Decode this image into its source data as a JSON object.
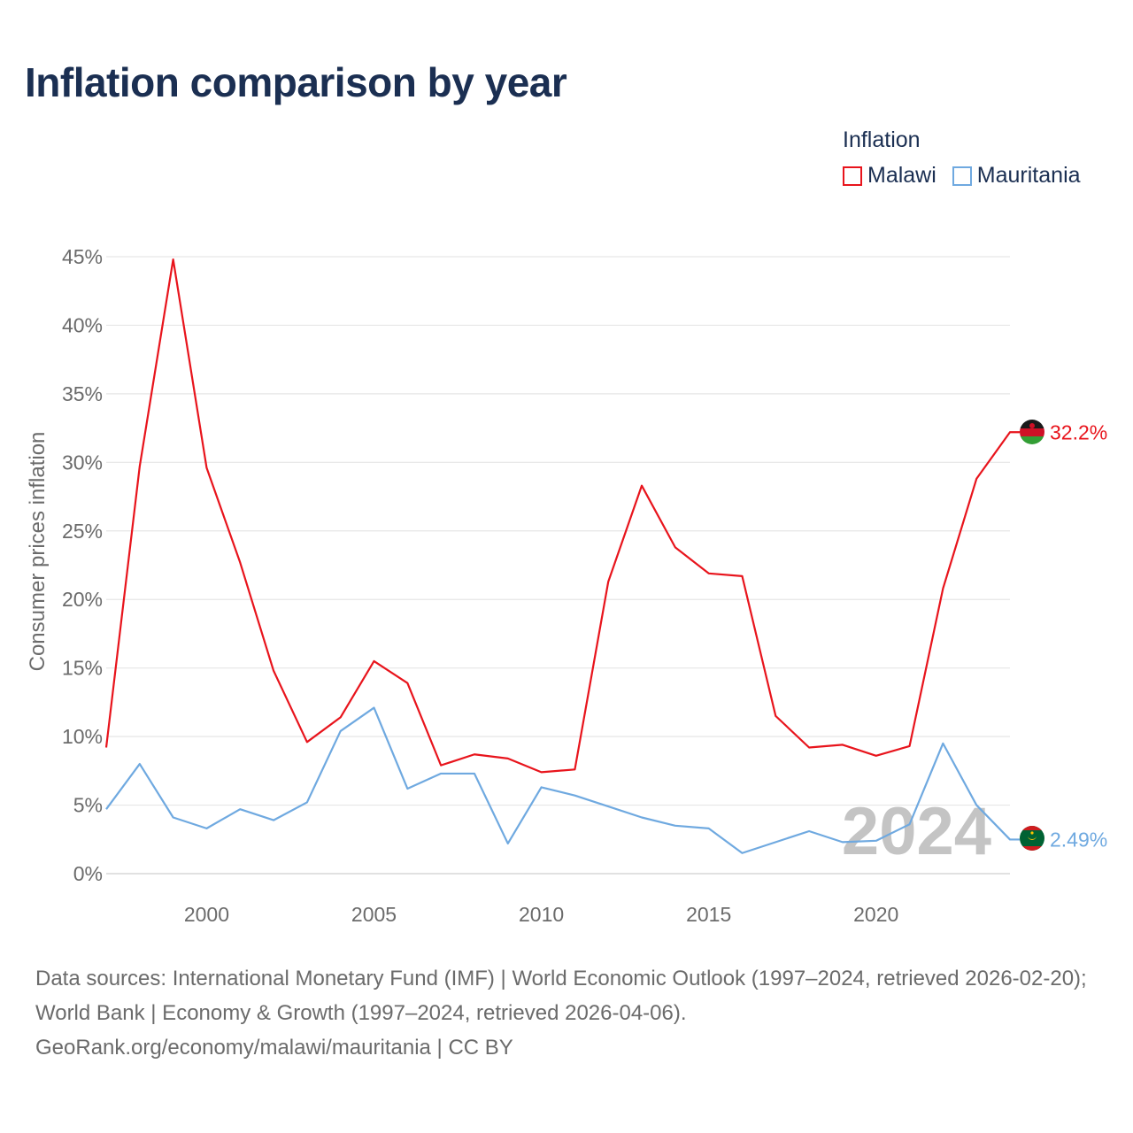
{
  "header": {
    "title": "Inflation comparison by year"
  },
  "legend": {
    "title": "Inflation",
    "items": [
      {
        "label": "Malawi",
        "color": "#e8141c"
      },
      {
        "label": "Mauritania",
        "color": "#6fa9e0"
      }
    ]
  },
  "chart_data": {
    "type": "line",
    "title": "Inflation comparison by year",
    "xlabel": "",
    "ylabel": "Consumer prices inflation",
    "xlim": [
      1997,
      2024
    ],
    "ylim": [
      0,
      45
    ],
    "x_ticks": [
      "2000",
      "2005",
      "2010",
      "2015",
      "2020"
    ],
    "y_ticks": [
      "0%",
      "5%",
      "10%",
      "15%",
      "20%",
      "25%",
      "30%",
      "35%",
      "40%",
      "45%"
    ],
    "watermark_year": "2024",
    "x": [
      1997,
      1998,
      1999,
      2000,
      2001,
      2002,
      2003,
      2004,
      2005,
      2006,
      2007,
      2008,
      2009,
      2010,
      2011,
      2012,
      2013,
      2014,
      2015,
      2016,
      2017,
      2018,
      2019,
      2020,
      2021,
      2022,
      2023,
      2024
    ],
    "series": [
      {
        "name": "Malawi",
        "color": "#e8141c",
        "end_label": "32.2%",
        "values": [
          9.2,
          29.7,
          44.8,
          29.6,
          22.7,
          14.8,
          9.6,
          11.4,
          15.5,
          13.9,
          7.9,
          8.7,
          8.4,
          7.4,
          7.6,
          21.3,
          28.3,
          23.8,
          21.9,
          21.7,
          11.5,
          9.2,
          9.4,
          8.6,
          9.3,
          20.8,
          28.8,
          32.2
        ]
      },
      {
        "name": "Mauritania",
        "color": "#6fa9e0",
        "end_label": "2.49%",
        "values": [
          4.7,
          8.0,
          4.1,
          3.3,
          4.7,
          3.9,
          5.2,
          10.4,
          12.1,
          6.2,
          7.3,
          7.3,
          2.2,
          6.3,
          5.7,
          4.9,
          4.1,
          3.5,
          3.3,
          1.5,
          2.3,
          3.1,
          2.3,
          2.4,
          3.6,
          9.5,
          5.0,
          2.49
        ]
      }
    ]
  },
  "footer": {
    "sources": "Data sources: International Monetary Fund (IMF) | World Economic Outlook (1997–2024, retrieved 2026-02-20); World Bank | Economy & Growth (1997–2024, retrieved 2026-04-06).",
    "attribution": "GeoRank.org/economy/malawi/mauritania | CC BY"
  }
}
